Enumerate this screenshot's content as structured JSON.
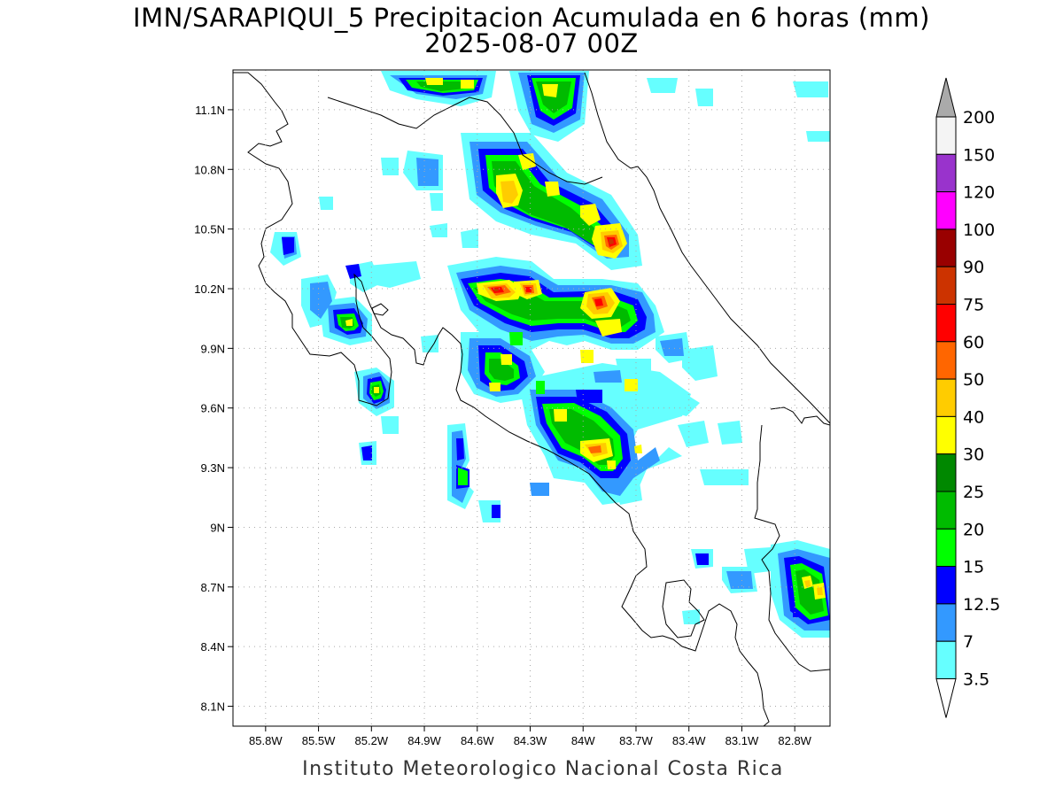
{
  "title": "IMN/SARAPIQUI_5 Precipitacion Acumulada en 6 horas (mm)",
  "subtitle": "2025-08-07 00Z",
  "footer": "Instituto Meteorologico Nacional Costa Rica",
  "map": {
    "lon_range": [
      -85.985,
      -82.6
    ],
    "lat_range": [
      8.0,
      11.3
    ],
    "lon_ticks": [
      "85.8W",
      "85.5W",
      "85.2W",
      "84.9W",
      "84.6W",
      "84.3W",
      "84W",
      "83.7W",
      "83.4W",
      "83.1W",
      "82.8W"
    ],
    "lon_tick_values": [
      -85.8,
      -85.5,
      -85.2,
      -84.9,
      -84.6,
      -84.3,
      -84.0,
      -83.7,
      -83.4,
      -83.1,
      -82.8
    ],
    "lat_ticks": [
      "11.1N",
      "10.8N",
      "10.5N",
      "10.2N",
      "9.9N",
      "9.6N",
      "9.3N",
      "9N",
      "8.7N",
      "8.4N",
      "8.1N"
    ],
    "lat_tick_values": [
      11.1,
      10.8,
      10.5,
      10.2,
      9.9,
      9.6,
      9.3,
      9.0,
      8.7,
      8.4,
      8.1
    ],
    "grid": "dotted"
  },
  "colorbar": {
    "labels": [
      "200",
      "150",
      "120",
      "100",
      "90",
      "75",
      "60",
      "50",
      "40",
      "30",
      "25",
      "20",
      "15",
      "12.5",
      "7",
      "3.5"
    ],
    "colors": [
      "#f4f4f4",
      "#9933cc",
      "#ff00ff",
      "#990000",
      "#cc3300",
      "#ff0000",
      "#ff6600",
      "#ffcc00",
      "#ffff00",
      "#008800",
      "#00bb00",
      "#00ff00",
      "#0000ff",
      "#3399ff",
      "#66ffff"
    ],
    "top_arrow_color": "#aaaaaa",
    "bottom_arrow_color": "#ffffff"
  }
}
